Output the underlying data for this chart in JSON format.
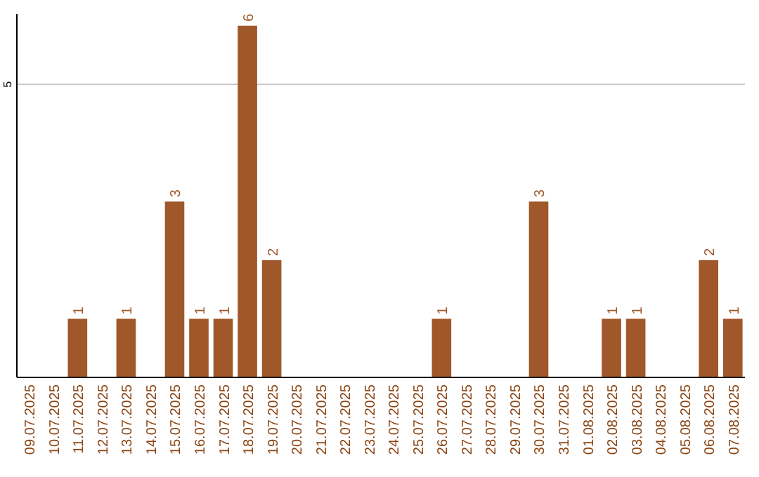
{
  "chart_data": {
    "type": "bar",
    "categories": [
      "09.07.2025",
      "10.07.2025",
      "11.07.2025",
      "12.07.2025",
      "13.07.2025",
      "14.07.2025",
      "15.07.2025",
      "16.07.2025",
      "17.07.2025",
      "18.07.2025",
      "19.07.2025",
      "20.07.2025",
      "21.07.2025",
      "22.07.2025",
      "23.07.2025",
      "24.07.2025",
      "25.07.2025",
      "26.07.2025",
      "27.07.2025",
      "28.07.2025",
      "29.07.2025",
      "30.07.2025",
      "31.07.2025",
      "01.08.2025",
      "02.08.2025",
      "03.08.2025",
      "04.08.2025",
      "05.08.2025",
      "06.08.2025",
      "07.08.2025"
    ],
    "values": [
      0,
      0,
      1,
      0,
      1,
      0,
      3,
      1,
      1,
      6,
      2,
      0,
      0,
      0,
      0,
      0,
      0,
      1,
      0,
      0,
      0,
      3,
      0,
      0,
      1,
      1,
      0,
      0,
      2,
      1
    ],
    "value_labels": [
      null,
      null,
      "1",
      null,
      "1",
      null,
      "3",
      "1",
      "1",
      "6",
      "2",
      null,
      null,
      null,
      null,
      null,
      null,
      "1",
      null,
      null,
      null,
      "3",
      null,
      null,
      "1",
      "1",
      null,
      null,
      "2",
      "1"
    ],
    "color": "#a0572a",
    "ylim": [
      0,
      6.2
    ],
    "yticks": [
      5
    ],
    "grid": "y"
  }
}
